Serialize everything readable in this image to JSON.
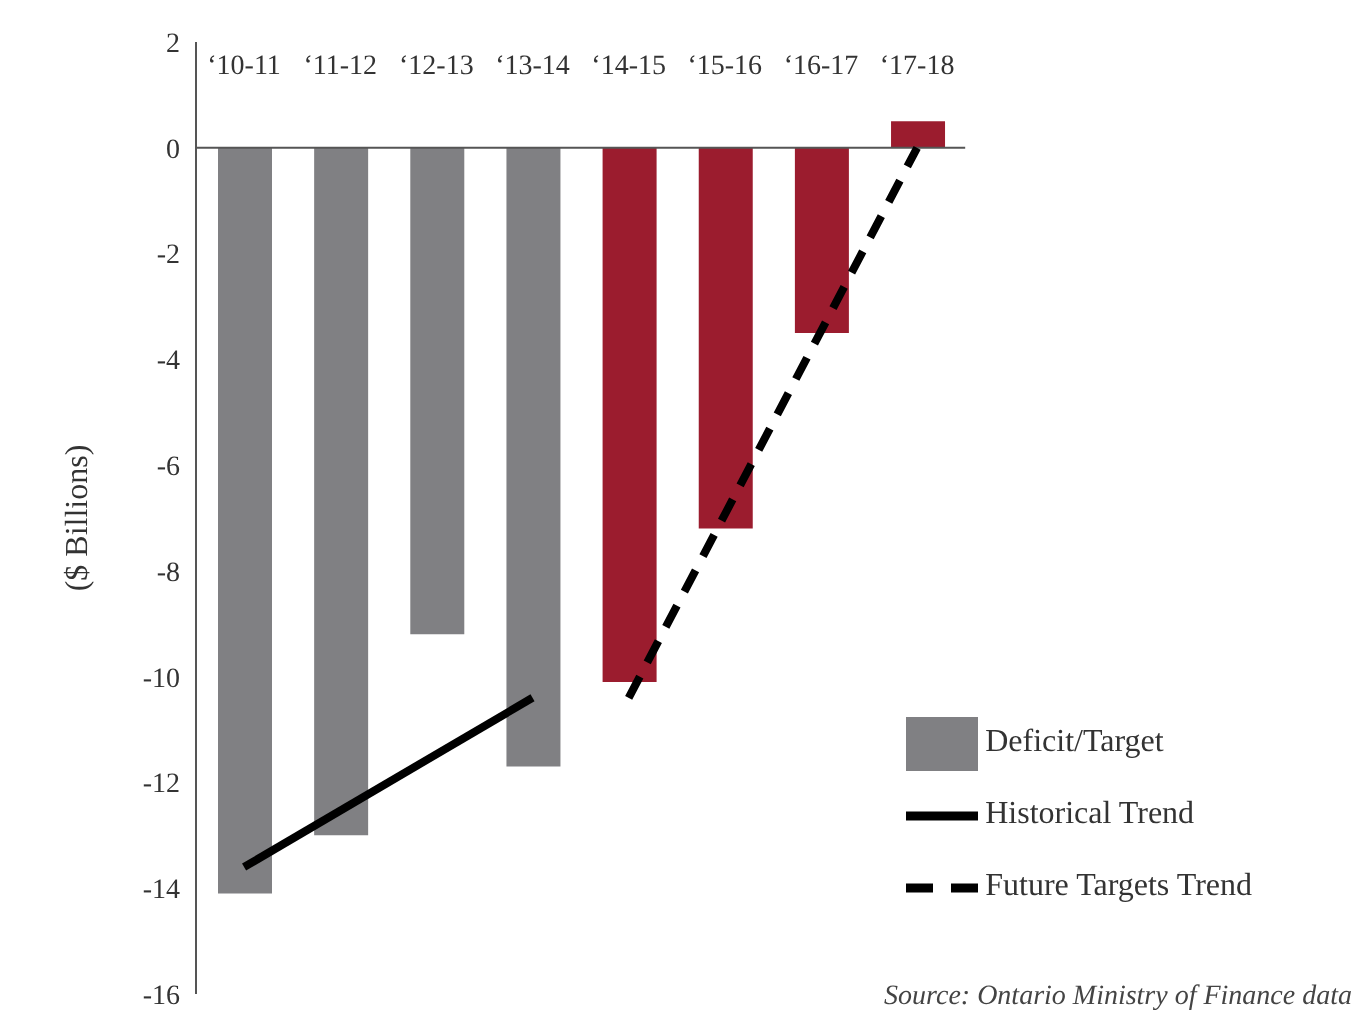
{
  "chart_data": {
    "type": "bar",
    "ylabel": "($ Billions)",
    "categories": [
      "‘10-11",
      "‘11-12",
      "‘12-13",
      "‘13-14",
      "‘14-15",
      "‘15-16",
      "‘16-17",
      "‘17-18"
    ],
    "series": [
      {
        "name": "Deficit/Target",
        "color": "#808083",
        "colors": [
          "#808083",
          "#808083",
          "#808083",
          "#808083",
          "#9b1c2e",
          "#9b1c2e",
          "#9b1c2e",
          "#9b1c2e"
        ],
        "values": [
          -14.1,
          -13.0,
          -9.2,
          -11.7,
          -10.1,
          -7.2,
          -3.5,
          0.5
        ]
      },
      {
        "name": "Historical Trend",
        "type": "line",
        "color": "#000000",
        "line_style": "solid",
        "x": [
          "‘10-11",
          "‘13-14"
        ],
        "values": [
          -13.6,
          -10.4
        ]
      },
      {
        "name": "Future Targets Trend",
        "type": "line",
        "color": "#000000",
        "line_style": "dashed",
        "x": [
          "‘14-15",
          "‘17-18"
        ],
        "values": [
          -10.4,
          0
        ]
      }
    ],
    "ylim": [
      -16,
      2
    ],
    "yticks": [
      -16,
      -14,
      -12,
      -10,
      -8,
      -6,
      -4,
      -2,
      0,
      2
    ],
    "legend": "bottom right",
    "marker": "none",
    "annotations": [
      "Source: Ontario Ministry of Finance data"
    ]
  }
}
